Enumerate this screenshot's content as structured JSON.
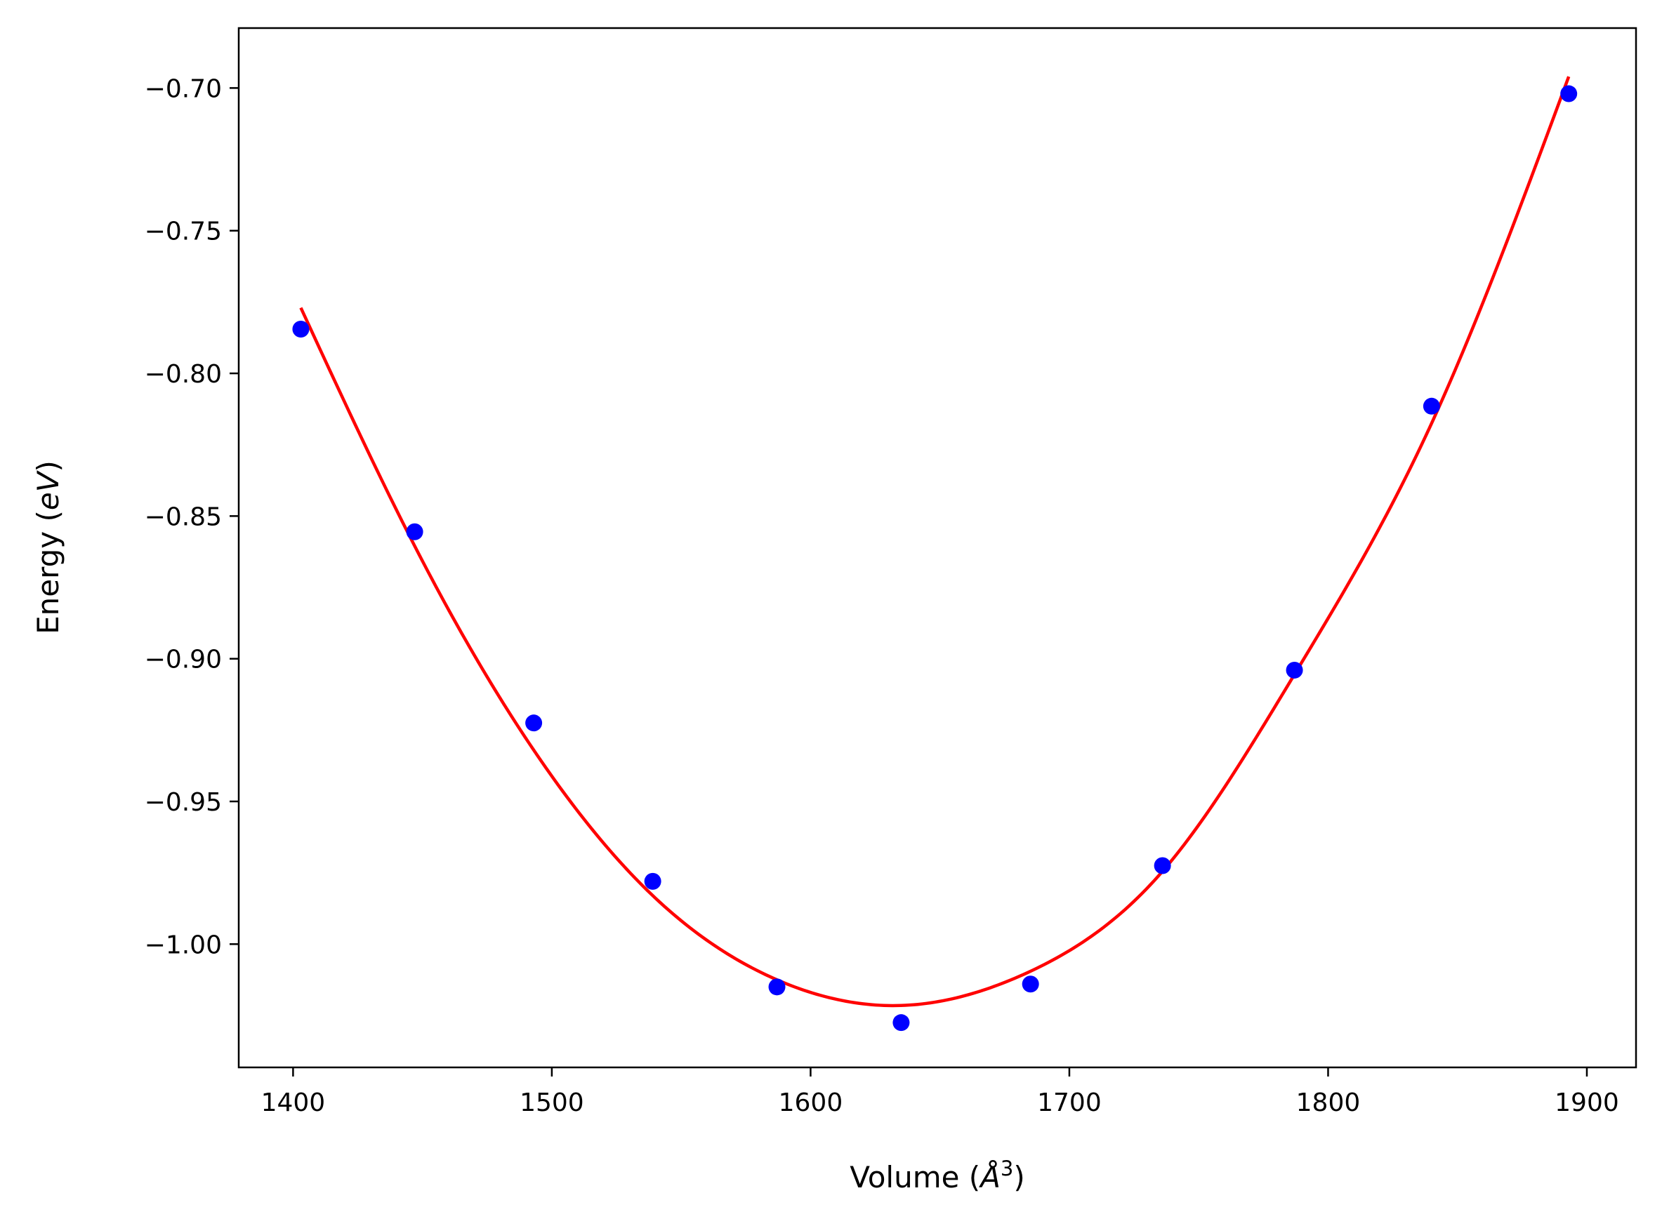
{
  "chart_data": {
    "type": "scatter",
    "title": "",
    "xlabel": "Volume (Å³)",
    "ylabel": "Energy (eV)",
    "xlabel_parts": {
      "pre": "Volume (",
      "math": "Å",
      "sup": "3",
      "post": ")"
    },
    "ylabel_parts": {
      "pre": "Energy (",
      "math": "eV",
      "post": ")"
    },
    "xlim": [
      1379,
      1919
    ],
    "ylim": [
      -1.0432,
      -0.679
    ],
    "xticks": [
      1400,
      1500,
      1600,
      1700,
      1800,
      1900
    ],
    "xtick_labels": [
      "1400",
      "1500",
      "1600",
      "1700",
      "1800",
      "1900"
    ],
    "yticks": [
      -1.0,
      -0.95,
      -0.9,
      -0.85,
      -0.8,
      -0.75,
      -0.7
    ],
    "ytick_labels": [
      "−1.00",
      "−0.95",
      "−0.90",
      "−0.85",
      "−0.80",
      "−0.75",
      "−0.70"
    ],
    "grid": false,
    "legend": null,
    "series": [
      {
        "kind": "points",
        "color": "#0000ff",
        "x": [
          1403,
          1447,
          1493,
          1539,
          1587,
          1635,
          1685,
          1736,
          1787,
          1840,
          1893
        ],
        "y": [
          -0.7845,
          -0.8555,
          -0.9225,
          -0.978,
          -1.015,
          -1.0275,
          -1.014,
          -0.9725,
          -0.904,
          -0.8115,
          -0.702
        ]
      },
      {
        "kind": "fit-curve",
        "color": "#ff0000",
        "x": [
          1403,
          1447,
          1493,
          1539,
          1587,
          1635,
          1685,
          1736,
          1787,
          1840,
          1893
        ],
        "y": [
          -0.777,
          -0.8605,
          -0.932,
          -0.983,
          -1.0125,
          -1.0215,
          -1.0095,
          -0.9745,
          -0.9055,
          -0.8175,
          -0.696
        ]
      }
    ]
  }
}
